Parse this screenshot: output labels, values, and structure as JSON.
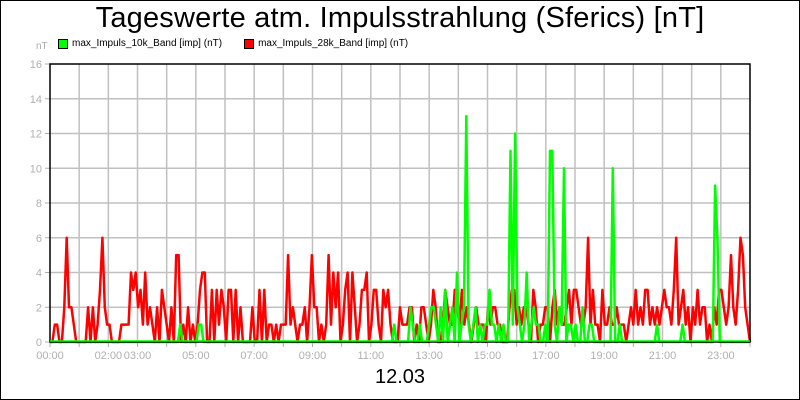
{
  "title": "Tageswerte atm. Impulsstrahlung (Sferics) [nT]",
  "date_label": "12.03",
  "y_unit": "nT",
  "legend": [
    {
      "label": "max_Impuls_10k_Band [imp] (nT)",
      "color": "#00ff00"
    },
    {
      "label": "max_Impuls_28k_Band [imp] (nT)",
      "color": "#ff0000"
    }
  ],
  "colors": {
    "grid": "#c0c0c0",
    "axis": "#000000",
    "tick_text": "#b0b0b0"
  },
  "chart_data": {
    "type": "line",
    "title": "Tageswerte atm. Impulsstrahlung (Sferics) [nT]",
    "xlabel": "12.03",
    "ylabel": "nT",
    "ylim": [
      0,
      16
    ],
    "xlim_hours": [
      0,
      24
    ],
    "grid": true,
    "legend_position": "top",
    "y_ticks": [
      0,
      2,
      4,
      6,
      8,
      10,
      12,
      14,
      16
    ],
    "x_tick_labels": [
      "00:00",
      "02:00",
      "03:00",
      "05:00",
      "07:00",
      "09:00",
      "11:00",
      "13:00",
      "15:00",
      "17:00",
      "19:00",
      "21:00",
      "23:00"
    ],
    "x_tick_hours": [
      0,
      2,
      3,
      5,
      7,
      9,
      11,
      13,
      15,
      17,
      19,
      21,
      23
    ],
    "sample_interval_minutes": 5,
    "series": [
      {
        "name": "max_Impuls_10k_Band [imp] (nT)",
        "color": "#00ff00",
        "values": [
          0,
          0,
          0,
          0,
          0,
          0,
          0,
          0,
          0,
          0,
          0,
          0,
          0,
          0,
          0,
          0,
          0,
          0,
          0,
          0,
          0,
          0,
          0,
          0,
          0,
          0,
          0,
          0,
          0,
          0,
          0,
          0,
          0,
          0,
          0,
          0,
          0,
          0,
          0,
          0,
          0,
          0,
          0,
          0,
          0,
          0,
          0,
          0,
          0,
          0,
          0,
          0,
          0,
          0,
          0,
          0,
          1,
          0,
          0,
          0,
          0,
          0,
          0,
          0,
          1,
          1,
          0,
          0,
          0,
          0,
          0,
          0,
          0,
          0,
          0,
          0,
          0,
          0,
          0,
          0,
          0,
          0,
          0,
          0,
          0,
          0,
          0,
          0,
          0,
          0,
          0,
          0,
          0,
          0,
          0,
          0,
          0,
          0,
          0,
          0,
          0,
          0,
          0,
          0,
          0,
          0,
          0,
          0,
          0,
          0,
          0,
          0,
          0,
          0,
          0,
          0,
          0,
          0,
          0,
          0,
          0,
          0,
          0,
          0,
          0,
          0,
          0,
          0,
          0,
          0,
          0,
          0,
          0,
          0,
          0,
          0,
          0,
          0,
          0,
          0,
          0,
          0,
          0,
          0,
          0,
          0,
          0,
          0,
          1,
          0,
          0,
          0,
          0,
          0,
          0,
          2,
          1,
          0,
          0,
          1,
          0,
          0,
          0,
          1,
          2,
          2,
          1,
          0,
          2,
          0,
          3,
          0,
          1,
          2,
          0,
          4,
          0,
          1,
          2,
          13,
          1,
          0,
          1,
          2,
          0,
          1,
          0,
          1,
          1,
          3,
          1,
          1,
          0,
          1,
          0,
          1,
          0,
          0,
          11,
          1,
          12,
          2,
          1,
          0,
          1,
          4,
          0,
          1,
          2,
          1,
          1,
          0,
          0,
          1,
          0,
          11,
          11,
          1,
          0,
          2,
          1,
          10,
          0,
          1,
          1,
          0,
          1,
          0,
          0,
          2,
          0,
          0,
          1,
          1,
          0,
          0,
          0,
          0,
          0,
          0,
          0,
          0,
          10,
          0,
          0,
          1,
          0,
          0,
          0,
          0,
          0,
          0,
          0,
          0,
          0,
          0,
          0,
          0,
          0,
          0,
          0,
          1,
          0,
          0,
          0,
          0,
          0,
          0,
          0,
          0,
          0,
          0,
          1,
          0,
          0,
          0,
          0,
          0,
          0,
          0,
          0,
          0,
          0,
          0,
          0,
          0,
          9,
          6,
          0,
          0,
          0,
          0,
          0,
          0,
          0,
          0,
          0,
          0,
          0,
          0,
          0,
          0
        ]
      },
      {
        "name": "max_Impuls_28k_Band [imp] (nT)",
        "color": "#ff0000",
        "values": [
          0,
          0,
          1,
          1,
          0,
          0,
          2,
          6,
          2,
          2,
          1,
          0,
          0,
          0,
          0,
          0,
          2,
          0,
          2,
          0,
          1,
          3,
          6,
          2,
          1,
          1,
          0,
          0,
          0,
          0,
          1,
          1,
          1,
          1,
          4,
          3,
          4,
          2,
          3,
          1,
          4,
          1,
          2,
          1,
          0,
          2,
          0,
          3,
          2,
          1,
          0,
          2,
          0,
          5,
          5,
          0,
          1,
          0,
          2,
          0,
          1,
          0,
          1,
          3,
          4,
          4,
          0,
          0,
          3,
          0,
          3,
          1,
          3,
          2,
          0,
          3,
          3,
          0,
          3,
          0,
          2,
          0,
          0,
          0,
          0,
          2,
          0,
          0,
          3,
          0,
          3,
          0,
          1,
          1,
          0,
          1,
          0,
          1,
          1,
          1,
          5,
          1,
          2,
          1,
          0,
          1,
          1,
          2,
          0,
          2,
          5,
          2,
          2,
          0,
          1,
          0,
          1,
          5,
          1,
          4,
          2,
          4,
          0,
          1,
          3,
          4,
          0,
          4,
          2,
          0,
          1,
          3,
          3,
          4,
          0,
          1,
          3,
          3,
          1,
          0,
          3,
          2,
          3,
          1,
          0,
          0,
          0,
          2,
          1,
          1,
          1,
          2,
          2,
          0,
          1,
          0,
          2,
          2,
          1,
          0,
          1,
          3,
          2,
          0,
          0,
          1,
          3,
          2,
          1,
          1,
          3,
          2,
          1,
          3,
          1,
          2,
          1,
          0,
          1,
          2,
          1,
          1,
          1,
          0,
          2,
          1,
          2,
          2,
          1,
          1,
          0,
          0,
          0,
          2,
          3,
          3,
          1,
          2,
          1,
          2,
          2,
          1,
          0,
          3,
          2,
          0,
          1,
          1,
          2,
          2,
          0,
          2,
          3,
          1,
          2,
          1,
          1,
          2,
          3,
          1,
          3,
          3,
          2,
          1,
          1,
          2,
          6,
          1,
          3,
          1,
          1,
          0,
          3,
          1,
          1,
          2,
          1,
          1,
          2,
          1,
          1,
          1,
          0,
          1,
          2,
          1,
          3,
          1,
          2,
          1,
          3,
          3,
          1,
          2,
          1,
          2,
          1,
          2,
          3,
          2,
          2,
          1,
          3,
          6,
          1,
          2,
          3,
          1,
          2,
          0,
          2,
          1,
          3,
          1,
          2,
          2,
          0,
          1,
          0,
          2,
          1,
          3,
          3,
          2,
          1,
          2,
          5,
          2,
          1,
          3,
          6,
          5,
          2,
          1,
          0
        ]
      }
    ]
  }
}
